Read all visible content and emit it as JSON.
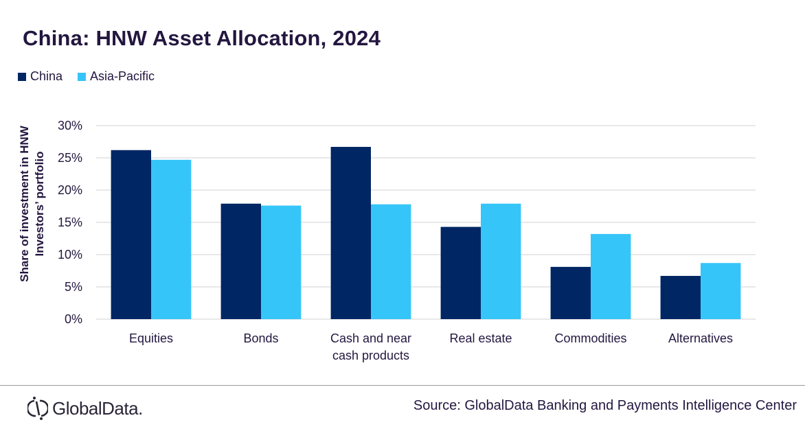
{
  "chart_data": {
    "type": "bar",
    "title": "China: HNW Asset Allocation, 2024",
    "xlabel": "",
    "ylabel": "Share of investment in HNW Investors’ portfolio",
    "ylabel_lines": [
      "Share of investment in HNW",
      "Investors’ portfolio"
    ],
    "ylim": [
      0,
      30
    ],
    "yticks": [
      0,
      5,
      10,
      15,
      20,
      25,
      30
    ],
    "ytick_labels": [
      "0%",
      "5%",
      "10%",
      "15%",
      "20%",
      "25%",
      "30%"
    ],
    "grid": true,
    "legend_position": "top-left",
    "categories": [
      "Equities",
      "Bonds",
      "Cash and near cash products",
      "Real estate",
      "Commodities",
      "Alternatives"
    ],
    "category_lines": [
      [
        "Equities"
      ],
      [
        "Bonds"
      ],
      [
        "Cash and near",
        "cash products"
      ],
      [
        "Real estate"
      ],
      [
        "Commodities"
      ],
      [
        "Alternatives"
      ]
    ],
    "series": [
      {
        "name": "China",
        "color": "#002664",
        "values": [
          26.2,
          17.9,
          26.7,
          14.3,
          8.1,
          6.7
        ]
      },
      {
        "name": "Asia-Pacific",
        "color": "#36c5f8",
        "values": [
          24.7,
          17.6,
          17.8,
          17.9,
          13.2,
          8.7
        ]
      }
    ]
  },
  "legend": [
    {
      "label": "China",
      "color": "#002664"
    },
    {
      "label": "Asia-Pacific",
      "color": "#36c5f8"
    }
  ],
  "footer": {
    "logo_text": "GlobalData.",
    "source": "Source: GlobalData Banking and Payments Intelligence Center"
  },
  "colors": {
    "text": "#23163f",
    "grid": "#d9d9d9"
  }
}
